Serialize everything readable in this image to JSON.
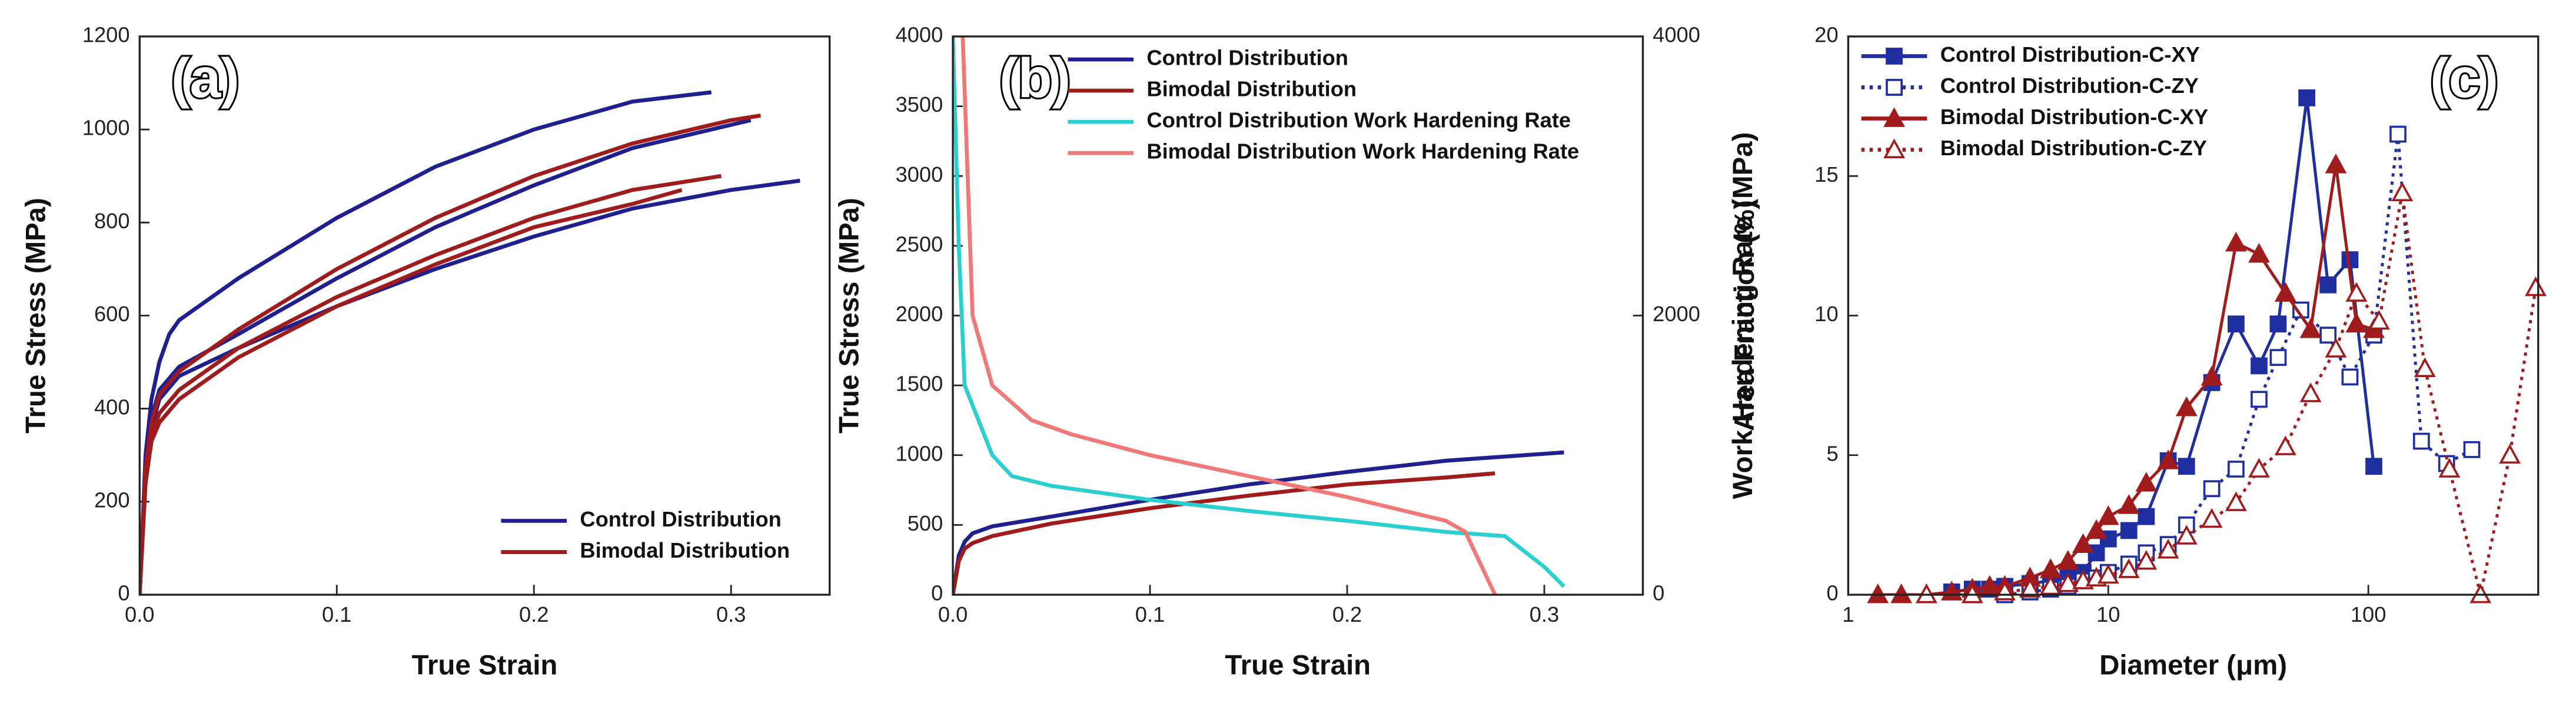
{
  "chart_data": [
    {
      "type": "line",
      "label": "(a)",
      "xlabel": "True Strain",
      "ylabel": "True Stress (MPa)",
      "xlim": [
        0,
        0.35
      ],
      "xticks": [
        {
          "value": 0,
          "label": "0.0"
        },
        0.1,
        0.2,
        0.3
      ],
      "ylim": [
        0,
        1200
      ],
      "yticks": [
        0,
        200,
        400,
        600,
        800,
        1000,
        1200
      ],
      "legend": "lower right",
      "series": [
        {
          "name": "Control Distribution",
          "color": "#1f1f8f",
          "curves": [
            {
              "x": [
                0,
                0.003,
                0.006,
                0.01,
                0.015,
                0.02,
                0.05,
                0.1,
                0.15,
                0.2,
                0.25,
                0.29
              ],
              "values": [
                0,
                300,
                420,
                500,
                560,
                590,
                680,
                810,
                920,
                1000,
                1060,
                1080
              ]
            },
            {
              "x": [
                0,
                0.003,
                0.006,
                0.01,
                0.02,
                0.05,
                0.1,
                0.15,
                0.2,
                0.25,
                0.31
              ],
              "values": [
                0,
                280,
                380,
                440,
                490,
                560,
                680,
                790,
                880,
                960,
                1020
              ]
            },
            {
              "x": [
                0,
                0.003,
                0.006,
                0.01,
                0.02,
                0.05,
                0.1,
                0.15,
                0.2,
                0.25,
                0.3,
                0.335
              ],
              "values": [
                0,
                260,
                360,
                420,
                470,
                530,
                620,
                700,
                770,
                830,
                870,
                890
              ]
            }
          ]
        },
        {
          "name": "Bimodal Distribution",
          "color": "#a01c1c",
          "curves": [
            {
              "x": [
                0,
                0.003,
                0.006,
                0.01,
                0.02,
                0.05,
                0.1,
                0.15,
                0.2,
                0.25,
                0.3,
                0.315
              ],
              "values": [
                0,
                270,
                370,
                430,
                480,
                570,
                700,
                810,
                900,
                970,
                1020,
                1030
              ]
            },
            {
              "x": [
                0,
                0.003,
                0.006,
                0.01,
                0.02,
                0.05,
                0.1,
                0.15,
                0.2,
                0.25,
                0.295
              ],
              "values": [
                0,
                250,
                340,
                390,
                440,
                530,
                640,
                730,
                810,
                870,
                900
              ]
            },
            {
              "x": [
                0,
                0.003,
                0.006,
                0.01,
                0.02,
                0.05,
                0.1,
                0.15,
                0.2,
                0.25,
                0.275
              ],
              "values": [
                0,
                240,
                330,
                370,
                420,
                510,
                620,
                710,
                790,
                840,
                870
              ]
            }
          ]
        }
      ]
    },
    {
      "type": "line",
      "label": "(b)",
      "xlabel": "True Strain",
      "ylabel": "True Stress (MPa)",
      "y2label": "Work Hardening Rate (MPa)",
      "xlim": [
        0,
        0.35
      ],
      "xticks": [
        {
          "value": 0,
          "label": "0.0"
        },
        0.1,
        0.2,
        0.3
      ],
      "ylim": [
        0,
        4000
      ],
      "yticks": [
        0,
        500,
        1000,
        1500,
        2000,
        2500,
        3000,
        3500,
        4000
      ],
      "y2lim": [
        0,
        4000
      ],
      "y2ticks": [
        0,
        2000,
        4000
      ],
      "legend": "upper left",
      "series": [
        {
          "name": "Control Distribution",
          "color": "#1f1f8f",
          "x": [
            0,
            0.003,
            0.006,
            0.01,
            0.02,
            0.05,
            0.1,
            0.15,
            0.2,
            0.25,
            0.31
          ],
          "values": [
            0,
            280,
            380,
            440,
            490,
            560,
            680,
            790,
            880,
            960,
            1020
          ]
        },
        {
          "name": "Bimodal Distribution",
          "color": "#a01c1c",
          "x": [
            0,
            0.003,
            0.006,
            0.01,
            0.02,
            0.05,
            0.1,
            0.15,
            0.2,
            0.25,
            0.275
          ],
          "values": [
            0,
            240,
            330,
            370,
            420,
            510,
            620,
            710,
            790,
            840,
            870
          ]
        },
        {
          "name": "Control Distribution Work Hardening Rate",
          "color": "#2ccfcf",
          "axis": "y2",
          "x": [
            0,
            0.003,
            0.006,
            0.02,
            0.03,
            0.05,
            0.1,
            0.15,
            0.2,
            0.25,
            0.28,
            0.3,
            0.31
          ],
          "values": [
            4000,
            2500,
            1500,
            1000,
            850,
            780,
            680,
            600,
            530,
            450,
            420,
            200,
            60
          ]
        },
        {
          "name": "Bimodal Distribution Work Hardening Rate",
          "color": "#f07878",
          "axis": "y2",
          "x": [
            0.005,
            0.01,
            0.02,
            0.04,
            0.06,
            0.1,
            0.15,
            0.2,
            0.25,
            0.26,
            0.27,
            0.275
          ],
          "values": [
            4000,
            2000,
            1500,
            1250,
            1150,
            1000,
            850,
            700,
            530,
            450,
            150,
            0
          ]
        }
      ]
    },
    {
      "type": "line",
      "label": "(c)",
      "xlabel": "Diameter (μm)",
      "ylabel": "Area Fraction (%)",
      "xscale": "log",
      "xlim": [
        1,
        450
      ],
      "xticks": [
        1,
        10,
        100
      ],
      "ylim": [
        0,
        20
      ],
      "yticks": [
        0,
        5,
        10,
        15,
        20
      ],
      "legend": "upper left",
      "series": [
        {
          "name": "Control Distribution-C-XY",
          "color": "#1f2f9f",
          "marker": "square",
          "filled": true,
          "dash": "solid",
          "x": [
            2.5,
            3,
            3.5,
            4,
            5,
            6,
            7,
            8,
            9,
            10,
            12,
            14,
            17,
            20,
            25,
            31,
            38,
            45,
            58,
            70,
            85,
            105
          ],
          "values": [
            0.1,
            0.2,
            0.2,
            0.3,
            0.4,
            0.5,
            0.6,
            0.8,
            1.5,
            2,
            2.3,
            2.8,
            4.8,
            4.6,
            7.6,
            9.7,
            8.2,
            9.7,
            17.8,
            11.1,
            12,
            4.6
          ]
        },
        {
          "name": "Control Distribution-C-ZY",
          "color": "#1f2f9f",
          "marker": "square",
          "filled": false,
          "dash": "dotted",
          "x": [
            3,
            4,
            5,
            6,
            7,
            8,
            9,
            10,
            12,
            14,
            17,
            20,
            25,
            31,
            38,
            45,
            55,
            70,
            85,
            105,
            130,
            160,
            200,
            250
          ],
          "values": [
            0,
            0,
            0.1,
            0.2,
            0.3,
            0.5,
            0.6,
            0.8,
            1.1,
            1.5,
            1.8,
            2.5,
            3.8,
            4.5,
            7,
            8.5,
            10.2,
            9.3,
            7.8,
            9.3,
            16.5,
            5.5,
            4.7,
            5.2
          ]
        },
        {
          "name": "Bimodal Distribution-C-XY",
          "color": "#a01c1c",
          "marker": "triangle",
          "filled": true,
          "dash": "solid",
          "x": [
            1.3,
            1.6,
            2,
            2.5,
            3,
            3.5,
            4,
            5,
            6,
            7,
            8,
            9,
            10,
            12,
            14,
            17,
            20,
            25,
            31,
            38,
            48,
            60,
            75,
            90,
            105
          ],
          "values": [
            0,
            0,
            0,
            0.1,
            0.2,
            0.3,
            0.3,
            0.6,
            0.9,
            1.2,
            1.8,
            2.3,
            2.8,
            3.2,
            4,
            4.8,
            6.7,
            7.8,
            12.6,
            12.2,
            10.8,
            9.5,
            15.4,
            9.7,
            9.5
          ]
        },
        {
          "name": "Bimodal Distribution-C-ZY",
          "color": "#a01c1c",
          "marker": "triangle",
          "filled": false,
          "dash": "dotted",
          "x": [
            2,
            3,
            4,
            5,
            6,
            7,
            8,
            9,
            10,
            12,
            14,
            17,
            20,
            25,
            31,
            38,
            48,
            60,
            75,
            90,
            110,
            135,
            165,
            205,
            270,
            350,
            440
          ],
          "values": [
            0,
            0,
            0.1,
            0.2,
            0.3,
            0.4,
            0.5,
            0.6,
            0.7,
            0.9,
            1.2,
            1.6,
            2.1,
            2.7,
            3.3,
            4.5,
            5.3,
            7.2,
            8.8,
            10.8,
            9.8,
            14.4,
            8.1,
            4.5,
            0,
            5,
            11
          ]
        }
      ]
    }
  ]
}
